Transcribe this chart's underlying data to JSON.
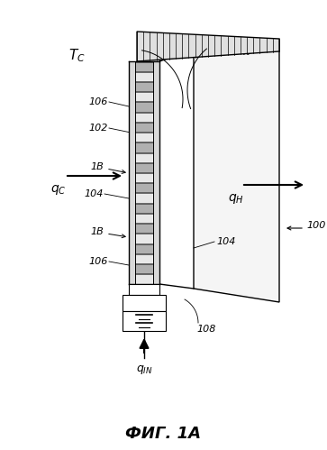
{
  "bg_color": "#ffffff",
  "line_color": "#000000",
  "fig_width": 3.63,
  "fig_height": 4.99,
  "dpi": 100,
  "title": "ФИГ. 1А"
}
